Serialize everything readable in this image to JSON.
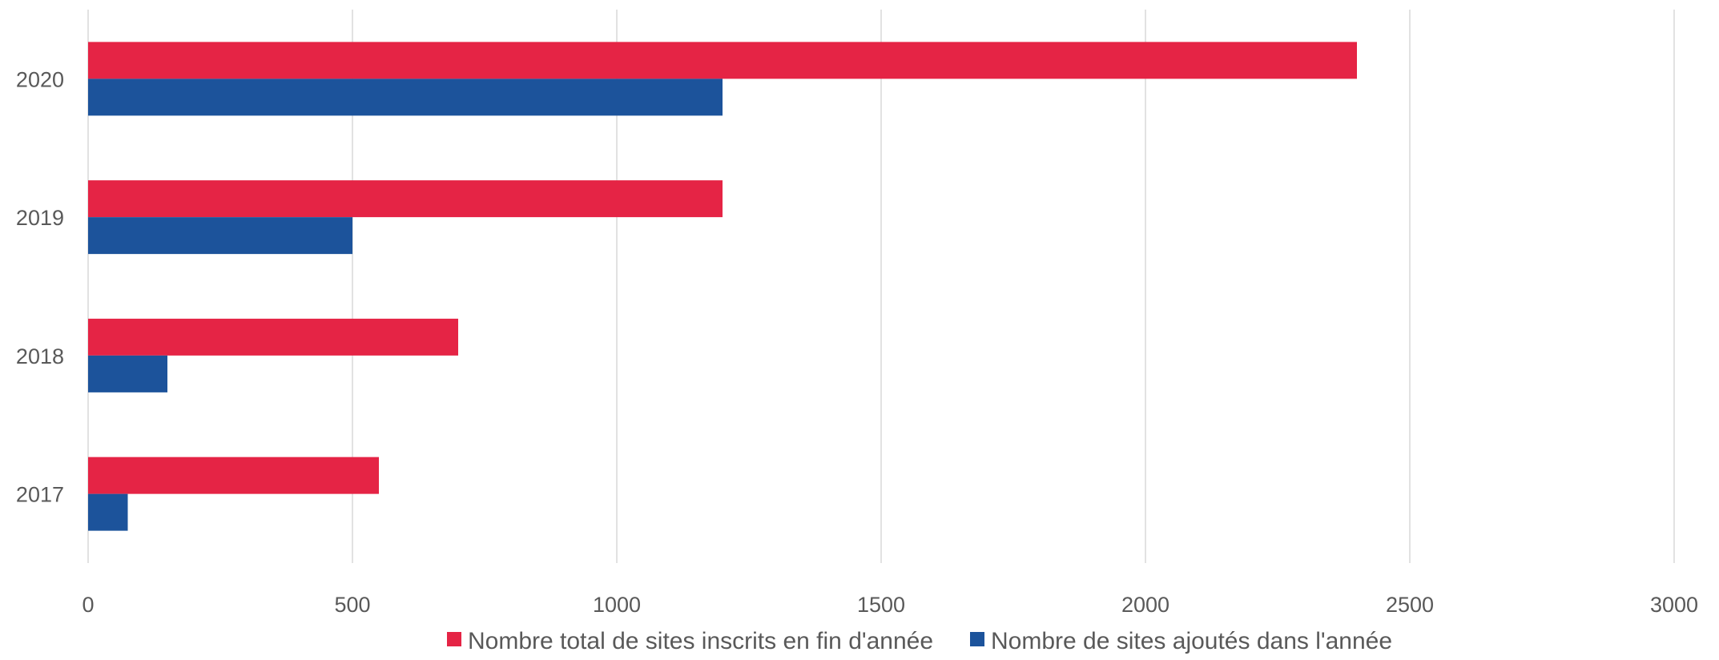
{
  "chart_data": {
    "type": "bar",
    "orientation": "horizontal",
    "categories": [
      "2020",
      "2019",
      "2018",
      "2017"
    ],
    "series": [
      {
        "name": "Nombre total de sites inscrits en fin d'année",
        "color": "#e52445",
        "values": [
          2400,
          1200,
          700,
          550
        ]
      },
      {
        "name": "Nombre de sites ajoutés dans l'année",
        "color": "#1c539b",
        "values": [
          1200,
          500,
          150,
          75
        ]
      }
    ],
    "xlim": [
      0,
      3000
    ],
    "xticks": [
      "0",
      "500",
      "1000",
      "1500",
      "2000",
      "2500",
      "3000"
    ],
    "grid": "vertical",
    "legend_position": "bottom-center",
    "title": "",
    "xlabel": "",
    "ylabel": ""
  }
}
